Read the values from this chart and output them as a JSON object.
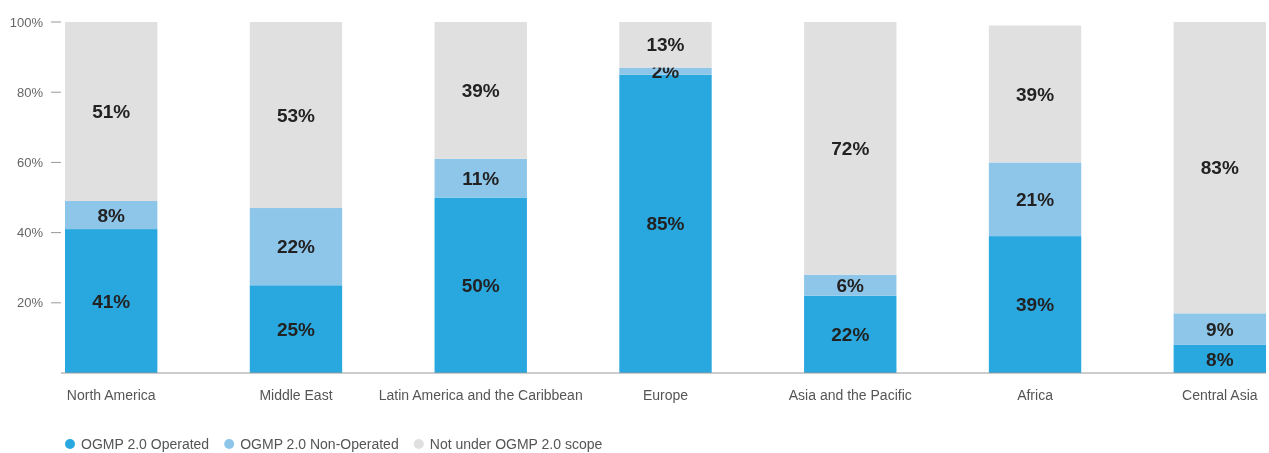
{
  "chart_data": {
    "type": "bar",
    "stacked": true,
    "categories": [
      "North America",
      "Middle East",
      "Latin America and the Caribbean",
      "Europe",
      "Asia and the Pacific",
      "Africa",
      "Central Asia"
    ],
    "series": [
      {
        "name": "OGMP 2.0 Operated",
        "color": "#29a8e0",
        "values": [
          41,
          25,
          50,
          85,
          22,
          39,
          8
        ],
        "value_labels": [
          "41%",
          "25%",
          "50%",
          "85%",
          "22%",
          "39%",
          "8%"
        ]
      },
      {
        "name": "OGMP 2.0 Non-Operated",
        "color": "#8ec6ea",
        "values": [
          8,
          22,
          11,
          2,
          6,
          21,
          9
        ],
        "value_labels": [
          "8%",
          "22%",
          "11%",
          "2%",
          "6%",
          "21%",
          "9%"
        ]
      },
      {
        "name": "Not under OGMP 2.0 scope",
        "color": "#e0e0e0",
        "values": [
          51,
          53,
          39,
          13,
          72,
          39,
          83
        ],
        "value_labels": [
          "51%",
          "53%",
          "39%",
          "13%",
          "72%",
          "39%",
          "83%"
        ]
      }
    ],
    "ylim": [
      0,
      100
    ],
    "yticks": [
      {
        "value": 20,
        "label": "20%"
      },
      {
        "value": 40,
        "label": "40%"
      },
      {
        "value": 60,
        "label": "60%"
      },
      {
        "value": 80,
        "label": "80%"
      },
      {
        "value": 100,
        "label": "100%"
      }
    ],
    "legend": "bottom left"
  }
}
